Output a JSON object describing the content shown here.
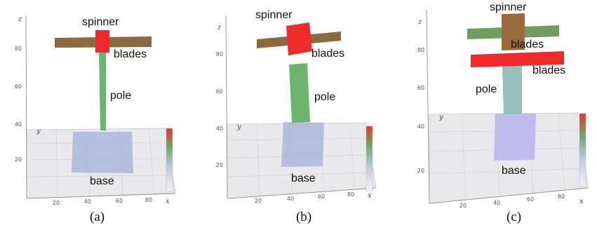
{
  "panels": [
    {
      "caption": "(a)",
      "labels": {
        "spinner": "spinner",
        "blades": "blades",
        "pole": "pole",
        "base": "base"
      },
      "z_ticks": [
        "20",
        "40",
        "60",
        "80"
      ],
      "x_ticks": [
        "20",
        "40",
        "60",
        "80"
      ],
      "z_axis": "z",
      "x_axis": "x",
      "y_axis": "y"
    },
    {
      "caption": "(b)",
      "labels": {
        "spinner": "spinner",
        "blades": "blades",
        "pole": "pole",
        "base": "base"
      },
      "z_ticks": [
        "20",
        "40",
        "60",
        "80"
      ],
      "x_ticks": [
        "20",
        "40",
        "60",
        "80"
      ],
      "z_axis": "z",
      "x_axis": "x",
      "y_axis": "y"
    },
    {
      "caption": "(c)",
      "labels": {
        "spinner": "spinner",
        "blades_top": "blades",
        "blades_bottom": "blades",
        "pole": "pole",
        "base": "base"
      },
      "z_ticks": [
        "20",
        "40",
        "60",
        "80"
      ],
      "x_ticks": [
        "20",
        "40",
        "60",
        "80"
      ],
      "z_axis": "z",
      "x_axis": "x",
      "y_axis": "y"
    }
  ],
  "colors": {
    "blade_brown": "#8c6a3f",
    "blade_green": "#6f9d5e",
    "spinner_red": "#ee2a2a",
    "spinner_brown": "#9b6a3c",
    "pole_green": "#6db56d",
    "pole_teal": "#94c0b8",
    "base_blue": "#aab6dc",
    "base_lilac": "#b9b3ec",
    "floor": "#e9e9ec"
  }
}
